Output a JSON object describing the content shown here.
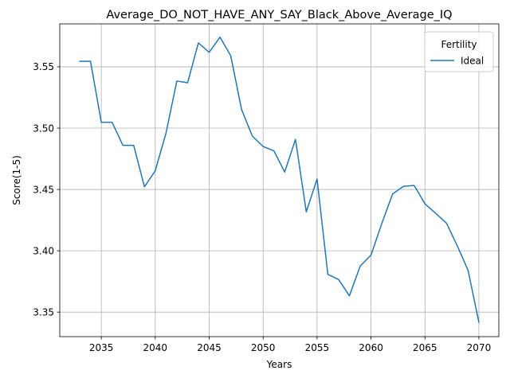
{
  "chart_data": {
    "type": "line",
    "title": "Average_DO_NOT_HAVE_ANY_SAY_Black_Above_Average_IQ",
    "xlabel": "Years",
    "ylabel": "Score(1-5)",
    "xlim": [
      2031.15,
      2071.85
    ],
    "ylim": [
      3.33,
      3.585
    ],
    "xticks": [
      2035,
      2040,
      2045,
      2050,
      2055,
      2060,
      2065,
      2070
    ],
    "yticks": [
      3.35,
      3.4,
      3.45,
      3.5,
      3.55
    ],
    "ytick_labels": [
      "3.35",
      "3.40",
      "3.45",
      "3.50",
      "3.55"
    ],
    "grid": true,
    "legend": {
      "title": "Fertility",
      "placement": "top-right"
    },
    "series": [
      {
        "name": "Ideal",
        "color": "#1f77b4",
        "x": [
          2033,
          2034,
          2035,
          2036,
          2037,
          2038,
          2039,
          2040,
          2041,
          2042,
          2043,
          2044,
          2045,
          2046,
          2047,
          2048,
          2049,
          2050,
          2051,
          2052,
          2053,
          2054,
          2055,
          2056,
          2057,
          2058,
          2059,
          2060,
          2061,
          2062,
          2063,
          2064,
          2065,
          2066,
          2067,
          2068,
          2069,
          2070
        ],
        "y": [
          3.5545,
          3.5545,
          3.5048,
          3.5048,
          3.486,
          3.486,
          3.4522,
          3.4652,
          3.496,
          3.5384,
          3.537,
          3.5695,
          3.5618,
          3.5742,
          3.559,
          3.5152,
          3.4935,
          3.485,
          3.4815,
          3.4642,
          3.4908,
          3.4318,
          3.4585,
          3.3808,
          3.3765,
          3.3633,
          3.3876,
          3.3965,
          3.4222,
          3.4463,
          3.4525,
          3.4533,
          3.4383,
          3.4305,
          3.4225,
          3.404,
          3.384,
          3.3417
        ]
      }
    ]
  }
}
